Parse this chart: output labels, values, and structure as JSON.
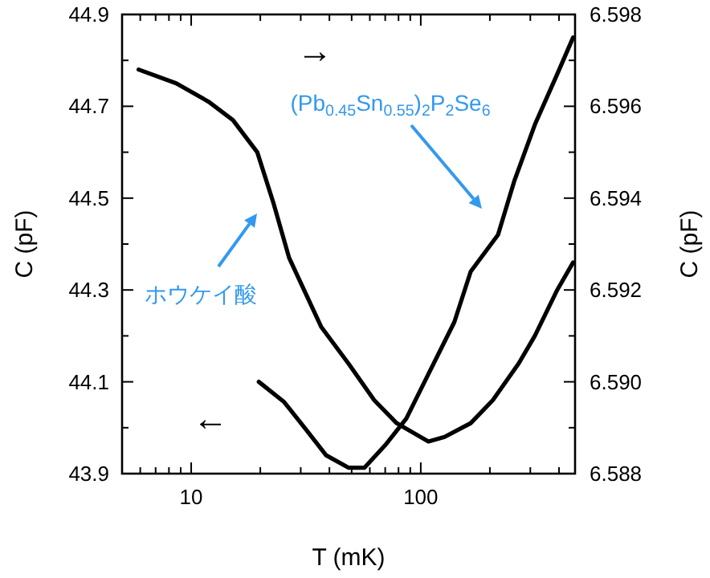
{
  "chart_data": {
    "type": "line",
    "xlabel": "T (mK)",
    "ylabel": "C (pF)",
    "y2label": "C (pF)",
    "log": "x",
    "xlim": [
      5,
      470
    ],
    "xticks": [
      {
        "value": 6,
        "label": null
      },
      {
        "value": 7,
        "label": null
      },
      {
        "value": 8,
        "label": null
      },
      {
        "value": 9,
        "label": null
      },
      10,
      {
        "value": 20,
        "label": null
      },
      {
        "value": 30,
        "label": null
      },
      {
        "value": 40,
        "label": null
      },
      {
        "value": 50,
        "label": null
      },
      {
        "value": 60,
        "label": null
      },
      {
        "value": 70,
        "label": null
      },
      {
        "value": 80,
        "label": null
      },
      {
        "value": 90,
        "label": null
      },
      100,
      {
        "value": 200,
        "label": null
      },
      {
        "value": 300,
        "label": null
      },
      {
        "value": 400,
        "label": null
      }
    ],
    "ylim": [
      43.9,
      44.9
    ],
    "yticks": [
      43.9,
      {
        "value": 44.0,
        "label": null
      },
      44.1,
      {
        "value": 44.2,
        "label": null
      },
      44.3,
      {
        "value": 44.4,
        "label": null
      },
      44.5,
      {
        "value": 44.6,
        "label": null
      },
      44.7,
      {
        "value": 44.8,
        "label": null
      },
      44.9
    ],
    "y2lim": [
      6.588,
      6.598
    ],
    "y2ticks": [
      6.588,
      {
        "value": 6.589,
        "label": null
      },
      {
        "value": 6.59,
        "label": "6.590"
      },
      {
        "value": 6.591,
        "label": null
      },
      6.592,
      {
        "value": 6.593,
        "label": null
      },
      6.594,
      {
        "value": 6.595,
        "label": null
      },
      6.596,
      {
        "value": 6.597,
        "label": null
      },
      6.598
    ],
    "grid": false,
    "series": [
      {
        "color": "#000000",
        "axis": "y2",
        "x": [
          5.9,
          8.6,
          11.9,
          15.2,
          19.4,
          22.8,
          26.7,
          36.8,
          48.4,
          62.7,
          78.5,
          92,
          108,
          127,
          165,
          206,
          267,
          314,
          393,
          461
        ],
        "values": [
          6.5968,
          6.5965,
          6.5961,
          6.5957,
          6.595,
          6.5939,
          6.5927,
          6.5912,
          6.5904,
          6.5896,
          6.5891,
          6.5889,
          6.5887,
          6.5888,
          6.5891,
          6.5896,
          6.5904,
          6.591,
          6.592,
          6.5926
        ]
      },
      {
        "color": "#000000",
        "axis": "y",
        "x": [
          19.7,
          25.4,
          31.4,
          38.7,
          48.4,
          56.9,
          70,
          86.5,
          108,
          140,
          165,
          217,
          255,
          314,
          393,
          461
        ],
        "values": [
          44.1,
          44.056,
          43.998,
          43.94,
          43.913,
          43.913,
          43.962,
          44.02,
          44.117,
          44.23,
          44.34,
          44.42,
          44.536,
          44.66,
          44.77,
          44.85
        ]
      }
    ],
    "annotations": [
      "ホウケイ酸",
      "(Pb$_{0.45}$Sn$_{0.55}$)$_{2}$P$_{2}$Se$_{6}$",
      "→",
      "←"
    ]
  }
}
